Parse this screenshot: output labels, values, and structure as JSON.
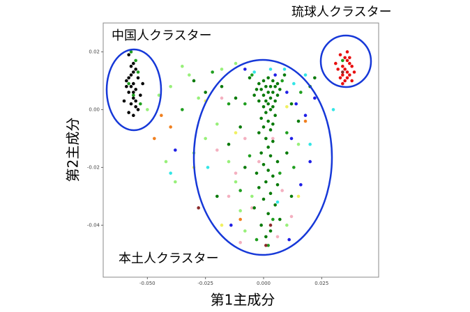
{
  "chart_data": {
    "type": "scatter",
    "x_label": "第1主成分",
    "y_label": "第2主成分",
    "annotations": [
      "中国人クラスター",
      "琉球人クラスター",
      "本土人クラスター"
    ],
    "xlim": [
      -0.069,
      0.0495
    ],
    "ylim": [
      -0.058,
      0.03
    ],
    "xticks": [
      {
        "value": -0.05,
        "label": "-0.050"
      },
      {
        "value": -0.025,
        "label": "-0.025"
      },
      {
        "value": 0,
        "label": "0.000"
      },
      {
        "value": 0.025,
        "label": "0.025"
      }
    ],
    "yticks": [
      0.02,
      {
        "value": 0,
        "label": "0.00"
      },
      -0.02,
      -0.04
    ],
    "series": [
      {
        "color": "#000000",
        "x": [
          -0.058,
          -0.056,
          -0.055,
          -0.057,
          -0.054,
          -0.059,
          -0.056,
          -0.057,
          -0.055,
          -0.058,
          -0.053,
          -0.056,
          -0.06,
          -0.057,
          -0.055,
          -0.054,
          -0.058,
          -0.056,
          -0.057,
          -0.059,
          -0.055,
          -0.056,
          -0.052,
          -0.058,
          -0.056
        ],
        "y": [
          0.019,
          0.016,
          0.014,
          0.012,
          0.011,
          0.01,
          0.009,
          0.008,
          0.007,
          0.006,
          0.005,
          0.004,
          0.003,
          0.002,
          0.001,
          0,
          -0.001,
          0.013,
          0.015,
          0.008,
          0.003,
          -0.002,
          0.009,
          0.011,
          0.006
        ]
      },
      {
        "color": "#e81010",
        "x": [
          0.033,
          0.035,
          0.036,
          0.037,
          0.034,
          0.038,
          0.032,
          0.035,
          0.036,
          0.039,
          0.034,
          0.037,
          0.033,
          0.036,
          0.035,
          0.038,
          0.031,
          0.034,
          0.037,
          0.036
        ],
        "y": [
          0.019,
          0.018,
          0.017,
          0.016,
          0.015,
          0.015,
          0.014,
          0.014,
          0.013,
          0.013,
          0.012,
          0.012,
          0.011,
          0.011,
          0.01,
          0.01,
          0.016,
          0.009,
          0.018,
          0.02
        ]
      },
      {
        "color": "#98f07a",
        "x": [
          -0.04,
          -0.032,
          -0.028,
          -0.02,
          -0.015,
          -0.012,
          -0.01,
          -0.025,
          -0.042,
          -0.05,
          -0.038,
          0.01,
          -0.008,
          -0.018,
          -0.03,
          0.015,
          -0.005,
          -0.012,
          -0.035,
          -0.045
        ],
        "y": [
          0.008,
          0.012,
          0.004,
          -0.005,
          -0.018,
          -0.025,
          -0.035,
          -0.01,
          -0.018,
          0,
          -0.025,
          -0.04,
          -0.042,
          0.014,
          -0.015,
          -0.012,
          -0.03,
          0.016,
          0.015,
          0.005
        ]
      },
      {
        "color": "#f4b0c0",
        "x": [
          -0.008,
          -0.012,
          -0.005,
          0.008,
          -0.015,
          -0.002,
          0.006,
          -0.01,
          -0.018,
          0.012,
          -0.02,
          0.004
        ],
        "y": [
          -0.01,
          -0.022,
          -0.034,
          -0.028,
          -0.03,
          -0.018,
          -0.044,
          -0.046,
          0.004,
          -0.037,
          -0.014,
          -0.01
        ]
      },
      {
        "color": "#f0f060",
        "x": [
          -0.025,
          -0.03,
          -0.012,
          0.015,
          -0.018,
          0.01
        ],
        "y": [
          0.003,
          -0.02,
          -0.008,
          -0.03,
          -0.04,
          0.001
        ]
      },
      {
        "color": "#f08020",
        "x": [
          -0.044,
          -0.04,
          -0.047,
          0.018,
          -0.01
        ],
        "y": [
          -0.002,
          -0.006,
          -0.01,
          -0.004,
          -0.038
        ]
      },
      {
        "color": "#1f1fe6",
        "x": [
          0.01,
          0.014,
          0.018,
          0.012,
          0.02,
          -0.038,
          0.005,
          0.016,
          -0.008,
          0.022,
          -0.014,
          0.011
        ],
        "y": [
          0.006,
          0.002,
          -0.002,
          -0.01,
          -0.018,
          -0.014,
          0.012,
          -0.026,
          0.014,
          0.004,
          -0.04,
          -0.045
        ]
      },
      {
        "color": "#33e6e6",
        "x": [
          0.009,
          0.03,
          -0.004,
          0.013,
          0.006,
          -0.024,
          0.02,
          -0.04,
          0.003,
          0.018
        ],
        "y": [
          0.014,
          0,
          0.013,
          0.009,
          -0.032,
          -0.02,
          -0.012,
          -0.022,
          0.014,
          0.012
        ]
      },
      {
        "color": "#1f9e1f",
        "x": [
          -0.057,
          -0.055,
          -0.054,
          -0.058,
          -0.056,
          -0.053,
          -0.005,
          0.008,
          -0.008,
          0.01,
          -0.006,
          0.007,
          -0.01,
          0.004,
          -0.015,
          0.016,
          -0.022,
          0.013,
          -0.003,
          0.002,
          0.034,
          -0.035
        ],
        "y": [
          0.02,
          0.017,
          0.013,
          0.009,
          0.005,
          0.002,
          0.012,
          0.01,
          0.002,
          -0.008,
          -0.016,
          -0.022,
          -0.028,
          -0.038,
          0.002,
          0.006,
          0.013,
          -0.02,
          -0.045,
          -0.047,
          0.017,
          0
        ]
      },
      {
        "color": "#8b2a2a",
        "x": [
          0.003,
          -0.028,
          0.001,
          0.034
        ],
        "y": [
          -0.04,
          -0.034,
          -0.047,
          0.013
        ]
      },
      {
        "color": "#087a08",
        "x": [
          0,
          0.002,
          0.004,
          0.006,
          -0.002,
          0.001,
          0.003,
          0.005,
          0.007,
          -0.003,
          -0.001,
          0.002,
          0.004,
          0.006,
          0,
          -0.004,
          0.003,
          0.005,
          0.001,
          -0.002,
          0.002,
          0.004,
          0,
          0.003,
          0.001,
          0.005,
          -0.001,
          0.002,
          0.004,
          0,
          0.003,
          -0.002,
          0.001,
          0.004,
          0.002,
          -0.001,
          0.003,
          0.006,
          0,
          0.002,
          -0.003,
          0.004,
          0.001,
          0.006,
          -0.002,
          0.003,
          0,
          0.005,
          -0.004,
          0.002,
          0.007,
          -0.001,
          0.003,
          0.001,
          -0.012,
          -0.018,
          -0.025,
          -0.01,
          0.012,
          0.015,
          0.02,
          -0.015,
          0.01,
          -0.03,
          0.022,
          -0.02,
          0.012,
          -0.008,
          0.009,
          -0.006
        ],
        "y": [
          0.01,
          0.011,
          0.01,
          0.009,
          0.009,
          0.008,
          0.008,
          0.008,
          0.007,
          0.007,
          0.007,
          0.006,
          0.006,
          0.005,
          0.005,
          0.005,
          0.004,
          0.003,
          0.003,
          0.003,
          0.002,
          0.001,
          0.001,
          0,
          -0.001,
          -0.002,
          -0.003,
          -0.004,
          -0.005,
          -0.006,
          -0.007,
          -0.008,
          -0.01,
          -0.011,
          -0.013,
          -0.015,
          -0.016,
          -0.018,
          -0.019,
          -0.021,
          -0.022,
          -0.023,
          -0.025,
          -0.026,
          -0.027,
          -0.029,
          -0.031,
          -0.033,
          -0.034,
          -0.036,
          -0.038,
          -0.04,
          -0.042,
          -0.044,
          0.004,
          0.008,
          0.006,
          -0.006,
          0.002,
          -0.004,
          0.008,
          -0.012,
          -0.015,
          0.01,
          0.011,
          -0.03,
          -0.03,
          -0.02,
          0.012,
          0.011
        ]
      }
    ]
  }
}
